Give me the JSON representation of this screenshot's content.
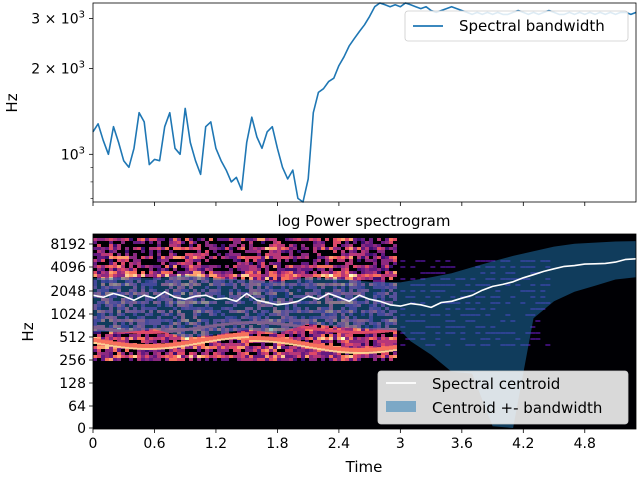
{
  "chart_data": [
    {
      "type": "line",
      "title": "",
      "ylabel": "Hz",
      "xlim": [
        0,
        5.3
      ],
      "yscale": "log",
      "ylim": [
        680,
        3400
      ],
      "yticks": [
        {
          "value": 1000,
          "base": "10",
          "exp": "3",
          "coef": ""
        },
        {
          "value": 2000,
          "base": "10",
          "exp": "3",
          "coef": "2 × "
        },
        {
          "value": 3000,
          "base": "10",
          "exp": "3",
          "coef": "3 × "
        }
      ],
      "legend": {
        "position": "upper right",
        "entries": [
          "Spectral bandwidth"
        ]
      },
      "series": [
        {
          "name": "Spectral bandwidth",
          "color": "#1f77b4",
          "x": [
            0,
            0.05,
            0.1,
            0.15,
            0.2,
            0.25,
            0.3,
            0.35,
            0.4,
            0.45,
            0.5,
            0.55,
            0.6,
            0.65,
            0.7,
            0.75,
            0.8,
            0.85,
            0.9,
            0.95,
            1,
            1.05,
            1.1,
            1.15,
            1.2,
            1.25,
            1.3,
            1.35,
            1.4,
            1.45,
            1.5,
            1.55,
            1.6,
            1.65,
            1.7,
            1.75,
            1.8,
            1.85,
            1.9,
            1.95,
            2,
            2.05,
            2.1,
            2.15,
            2.2,
            2.25,
            2.3,
            2.35,
            2.4,
            2.45,
            2.5,
            2.55,
            2.6,
            2.65,
            2.7,
            2.75,
            2.8,
            2.85,
            2.9,
            2.95,
            3,
            3.05,
            3.1,
            3.15,
            3.2,
            3.25,
            3.3,
            3.35,
            3.4,
            3.45,
            3.5,
            3.55,
            3.6,
            3.65,
            3.7,
            3.75,
            3.8,
            3.85,
            3.9,
            3.95,
            4,
            4.05,
            4.1,
            4.15,
            4.2,
            4.25,
            4.3,
            4.35,
            4.4,
            4.45,
            4.5,
            4.55,
            4.6,
            4.65,
            4.7,
            4.75,
            4.8,
            4.85,
            4.9,
            4.95,
            5,
            5.05,
            5.1,
            5.15,
            5.2,
            5.25,
            5.3
          ],
          "values": [
            1200,
            1280,
            1120,
            1000,
            1250,
            1100,
            950,
            900,
            1050,
            1400,
            1300,
            920,
            960,
            950,
            1250,
            1400,
            1050,
            1000,
            1450,
            1100,
            950,
            850,
            1250,
            1300,
            1050,
            950,
            880,
            800,
            830,
            750,
            1100,
            1350,
            1150,
            1050,
            1200,
            1250,
            1050,
            900,
            820,
            880,
            700,
            650,
            820,
            1400,
            1650,
            1700,
            1800,
            1850,
            2050,
            2200,
            2400,
            2550,
            2700,
            2850,
            3050,
            3300,
            3400,
            3350,
            3300,
            3350,
            3300,
            3400,
            3350,
            3300,
            3250,
            3300,
            3200,
            3150,
            3200,
            3250,
            3300,
            3250,
            3200,
            3150,
            3100,
            3150,
            3100,
            3150,
            3100,
            3150,
            3100,
            3100,
            3150,
            3200,
            3150,
            3100,
            3150,
            3100,
            3150,
            3200,
            3150,
            3100,
            3100,
            3150,
            3100,
            3150,
            3100,
            3150,
            3100,
            3150,
            3100,
            3150,
            3100,
            3150,
            3150,
            3100,
            3150
          ]
        }
      ]
    },
    {
      "type": "heatmap",
      "title": "log Power spectrogram",
      "xlabel": "Time",
      "ylabel": "Hz",
      "xlim": [
        0,
        5.3
      ],
      "xticks": [
        "0",
        "0.6",
        "1.2",
        "1.8",
        "2.4",
        "3",
        "3.6",
        "4.2",
        "4.8"
      ],
      "yscale": "log",
      "yticks": [
        "0",
        "64",
        "128",
        "256",
        "512",
        "1024",
        "2048",
        "4096",
        "8192"
      ],
      "legend": {
        "position": "lower right",
        "entries": [
          "Spectral centroid",
          "Centroid +- bandwidth"
        ]
      },
      "series": [
        {
          "name": "Spectral centroid",
          "color": "#ffffff",
          "x": [
            0,
            0.1,
            0.2,
            0.3,
            0.4,
            0.5,
            0.6,
            0.7,
            0.8,
            0.9,
            1,
            1.1,
            1.2,
            1.3,
            1.4,
            1.5,
            1.6,
            1.7,
            1.8,
            1.9,
            2,
            2.1,
            2.2,
            2.3,
            2.4,
            2.5,
            2.6,
            2.7,
            2.8,
            2.9,
            3,
            3.1,
            3.2,
            3.3,
            3.4,
            3.5,
            3.6,
            3.7,
            3.8,
            3.9,
            4,
            4.1,
            4.2,
            4.3,
            4.4,
            4.5,
            4.6,
            4.7,
            4.8,
            4.9,
            5,
            5.1,
            5.2,
            5.3
          ],
          "values": [
            1800,
            1700,
            1900,
            1750,
            1550,
            1800,
            1650,
            2000,
            1700,
            1600,
            1750,
            1800,
            1600,
            1650,
            1500,
            1900,
            1550,
            1450,
            1350,
            1400,
            1500,
            1750,
            1600,
            1900,
            1700,
            1500,
            1800,
            1600,
            1500,
            1350,
            1300,
            1400,
            1350,
            1250,
            1450,
            1500,
            1650,
            1800,
            2100,
            2350,
            2500,
            2700,
            3050,
            3350,
            3700,
            4000,
            4300,
            4400,
            4600,
            4650,
            4700,
            4900,
            5300,
            5400
          ]
        },
        {
          "name": "Centroid +- bandwidth",
          "color": "#1f77b4",
          "x": [
            0,
            0.3,
            0.6,
            0.9,
            1.2,
            1.5,
            1.8,
            2.1,
            2.4,
            2.7,
            3,
            3.1,
            3.3,
            3.5,
            3.7,
            3.9,
            4.1,
            4.3,
            4.5,
            4.7,
            4.9,
            5.1,
            5.3
          ],
          "lower": [
            600,
            590,
            650,
            500,
            550,
            640,
            570,
            760,
            690,
            650,
            620,
            450,
            300,
            180,
            170,
            5,
            0,
            900,
            1500,
            2000,
            2400,
            2900,
            3100
          ],
          "upper": [
            3000,
            3100,
            3000,
            3300,
            3000,
            2900,
            2700,
            3100,
            2950,
            2700,
            2650,
            2800,
            3100,
            3500,
            4200,
            5000,
            5900,
            6800,
            7800,
            8500,
            8800,
            9100,
            9200
          ]
        }
      ]
    }
  ]
}
